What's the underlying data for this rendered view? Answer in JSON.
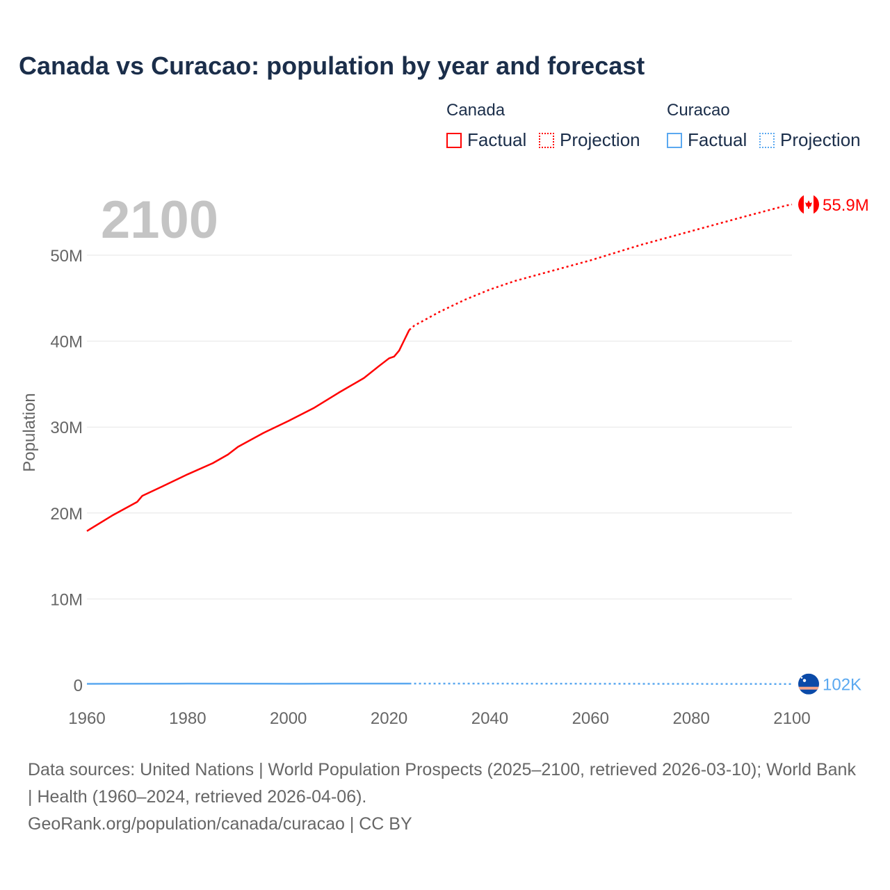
{
  "title": "Canada vs Curacao: population by year and forecast",
  "legend": {
    "groups": [
      {
        "name": "Canada",
        "color": "#ff0000",
        "factual": "Factual",
        "projection": "Projection"
      },
      {
        "name": "Curacao",
        "color": "#5aa8f0",
        "factual": "Factual",
        "projection": "Projection"
      }
    ]
  },
  "footer": {
    "sources": "Data sources: United Nations | World Population Prospects (2025–2100, retrieved 2026-03-10); World Bank | Health (1960–2024, retrieved 2026-04-06).",
    "credit": "GeoRank.org/population/canada/curacao | CC BY"
  },
  "chart_data": {
    "type": "line",
    "title": "Canada vs Curacao: population by year and forecast",
    "year_label": "2100",
    "xlabel": "",
    "ylabel": "Population",
    "xlim": [
      1960,
      2100
    ],
    "ylim": [
      0,
      50000000
    ],
    "x_ticks": [
      "1960",
      "1980",
      "2000",
      "2020",
      "2040",
      "2060",
      "2080",
      "2100"
    ],
    "y_ticks": [
      {
        "v": 0,
        "label": "0"
      },
      {
        "v": 10000000,
        "label": "10M"
      },
      {
        "v": 20000000,
        "label": "20M"
      },
      {
        "v": 30000000,
        "label": "30M"
      },
      {
        "v": 40000000,
        "label": "40M"
      },
      {
        "v": 50000000,
        "label": "50M"
      }
    ],
    "grid": true,
    "series": [
      {
        "name": "Canada",
        "color": "#ff0000",
        "end_label": "55.9M",
        "factual": [
          [
            1960,
            17.9
          ],
          [
            1965,
            19.7
          ],
          [
            1970,
            21.3
          ],
          [
            1971,
            22.0
          ],
          [
            1975,
            23.1
          ],
          [
            1980,
            24.5
          ],
          [
            1985,
            25.8
          ],
          [
            1988,
            26.8
          ],
          [
            1990,
            27.7
          ],
          [
            1995,
            29.3
          ],
          [
            2000,
            30.7
          ],
          [
            2005,
            32.2
          ],
          [
            2010,
            34.0
          ],
          [
            2015,
            35.7
          ],
          [
            2018,
            37.1
          ],
          [
            2020,
            38.0
          ],
          [
            2021,
            38.2
          ],
          [
            2022,
            38.9
          ],
          [
            2023,
            40.1
          ],
          [
            2024,
            41.3
          ]
        ],
        "projection": [
          [
            2024,
            41.3
          ],
          [
            2025,
            41.8
          ],
          [
            2030,
            43.4
          ],
          [
            2035,
            44.8
          ],
          [
            2040,
            46.0
          ],
          [
            2045,
            47.0
          ],
          [
            2050,
            47.8
          ],
          [
            2055,
            48.6
          ],
          [
            2060,
            49.4
          ],
          [
            2070,
            51.2
          ],
          [
            2080,
            52.8
          ],
          [
            2090,
            54.4
          ],
          [
            2099,
            55.8
          ],
          [
            2100,
            55.9
          ]
        ]
      },
      {
        "name": "Curacao",
        "color": "#5aa8f0",
        "end_label": "102K",
        "factual": [
          [
            1960,
            0.125
          ],
          [
            1965,
            0.135
          ],
          [
            1980,
            0.148
          ],
          [
            2000,
            0.135
          ],
          [
            2002,
            0.129
          ],
          [
            2010,
            0.148
          ],
          [
            2020,
            0.154
          ],
          [
            2024,
            0.156
          ]
        ],
        "projection": [
          [
            2024,
            0.156
          ],
          [
            2040,
            0.15
          ],
          [
            2060,
            0.135
          ],
          [
            2080,
            0.118
          ],
          [
            2100,
            0.102
          ]
        ]
      }
    ]
  }
}
